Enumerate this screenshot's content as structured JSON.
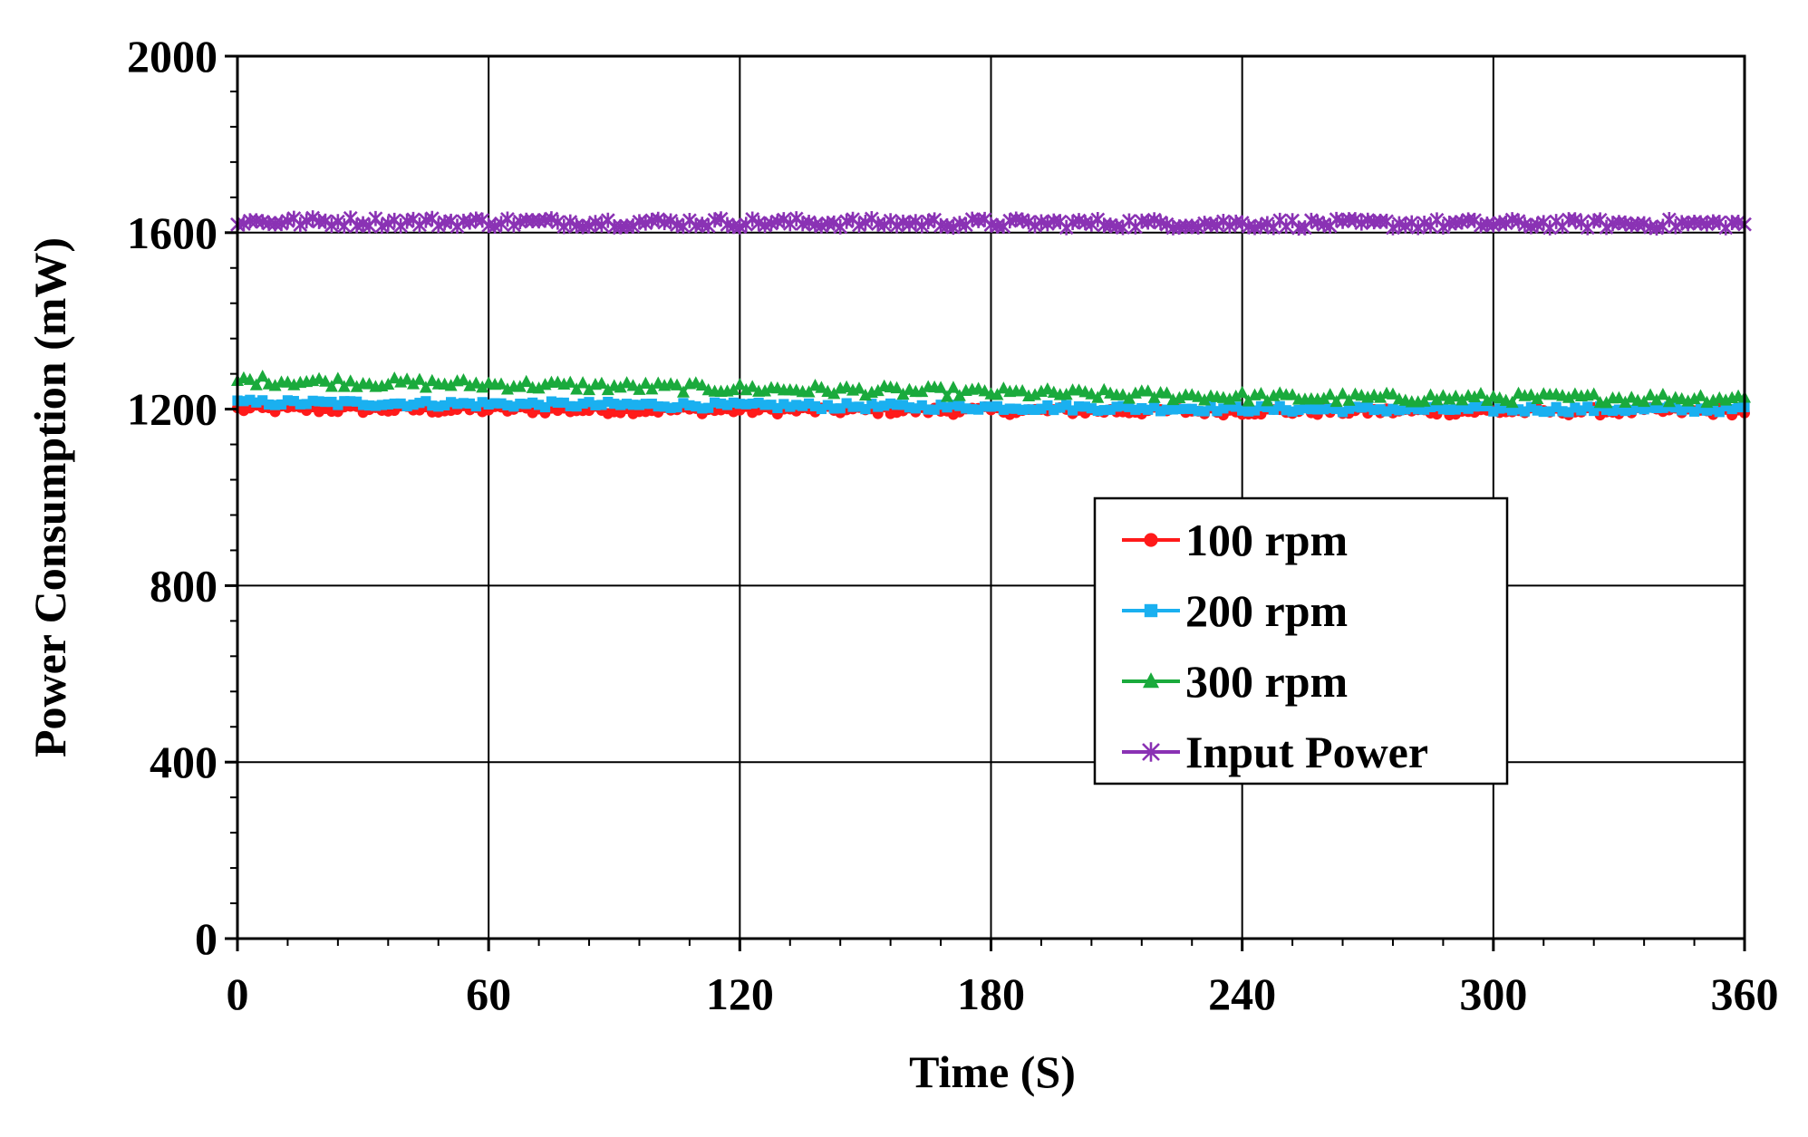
{
  "chart_data": {
    "type": "line",
    "title": "",
    "xlabel": "Time (S)",
    "ylabel": "Power Consumption (mW)",
    "xlim": [
      0,
      360
    ],
    "ylim": [
      0,
      2000
    ],
    "x_ticks": [
      0,
      60,
      120,
      180,
      240,
      300,
      360
    ],
    "y_ticks": [
      0,
      400,
      800,
      1200,
      1600,
      2000
    ],
    "x_tick_labels": [
      "0",
      "60",
      "120",
      "180",
      "240",
      "300",
      "360"
    ],
    "y_tick_labels": [
      "0",
      "400",
      "800",
      "1200",
      "1600",
      "2000"
    ],
    "grid": true,
    "legend_position": "center-right",
    "series": [
      {
        "name": "100 rpm",
        "color": "#ff1a1a",
        "marker": "circle",
        "start": 1200,
        "end": 1195,
        "noise": 9
      },
      {
        "name": "200 rpm",
        "color": "#1ab0f0",
        "marker": "square",
        "start": 1215,
        "end": 1200,
        "noise": 7
      },
      {
        "name": "300 rpm",
        "color": "#1aaa3c",
        "marker": "triangle",
        "start": 1265,
        "end": 1225,
        "noise": 11
      },
      {
        "name": "Input Power",
        "color": "#8a32b4",
        "marker": "x",
        "start": 1625,
        "end": 1620,
        "noise": 10
      }
    ],
    "x_step": 1.5
  }
}
